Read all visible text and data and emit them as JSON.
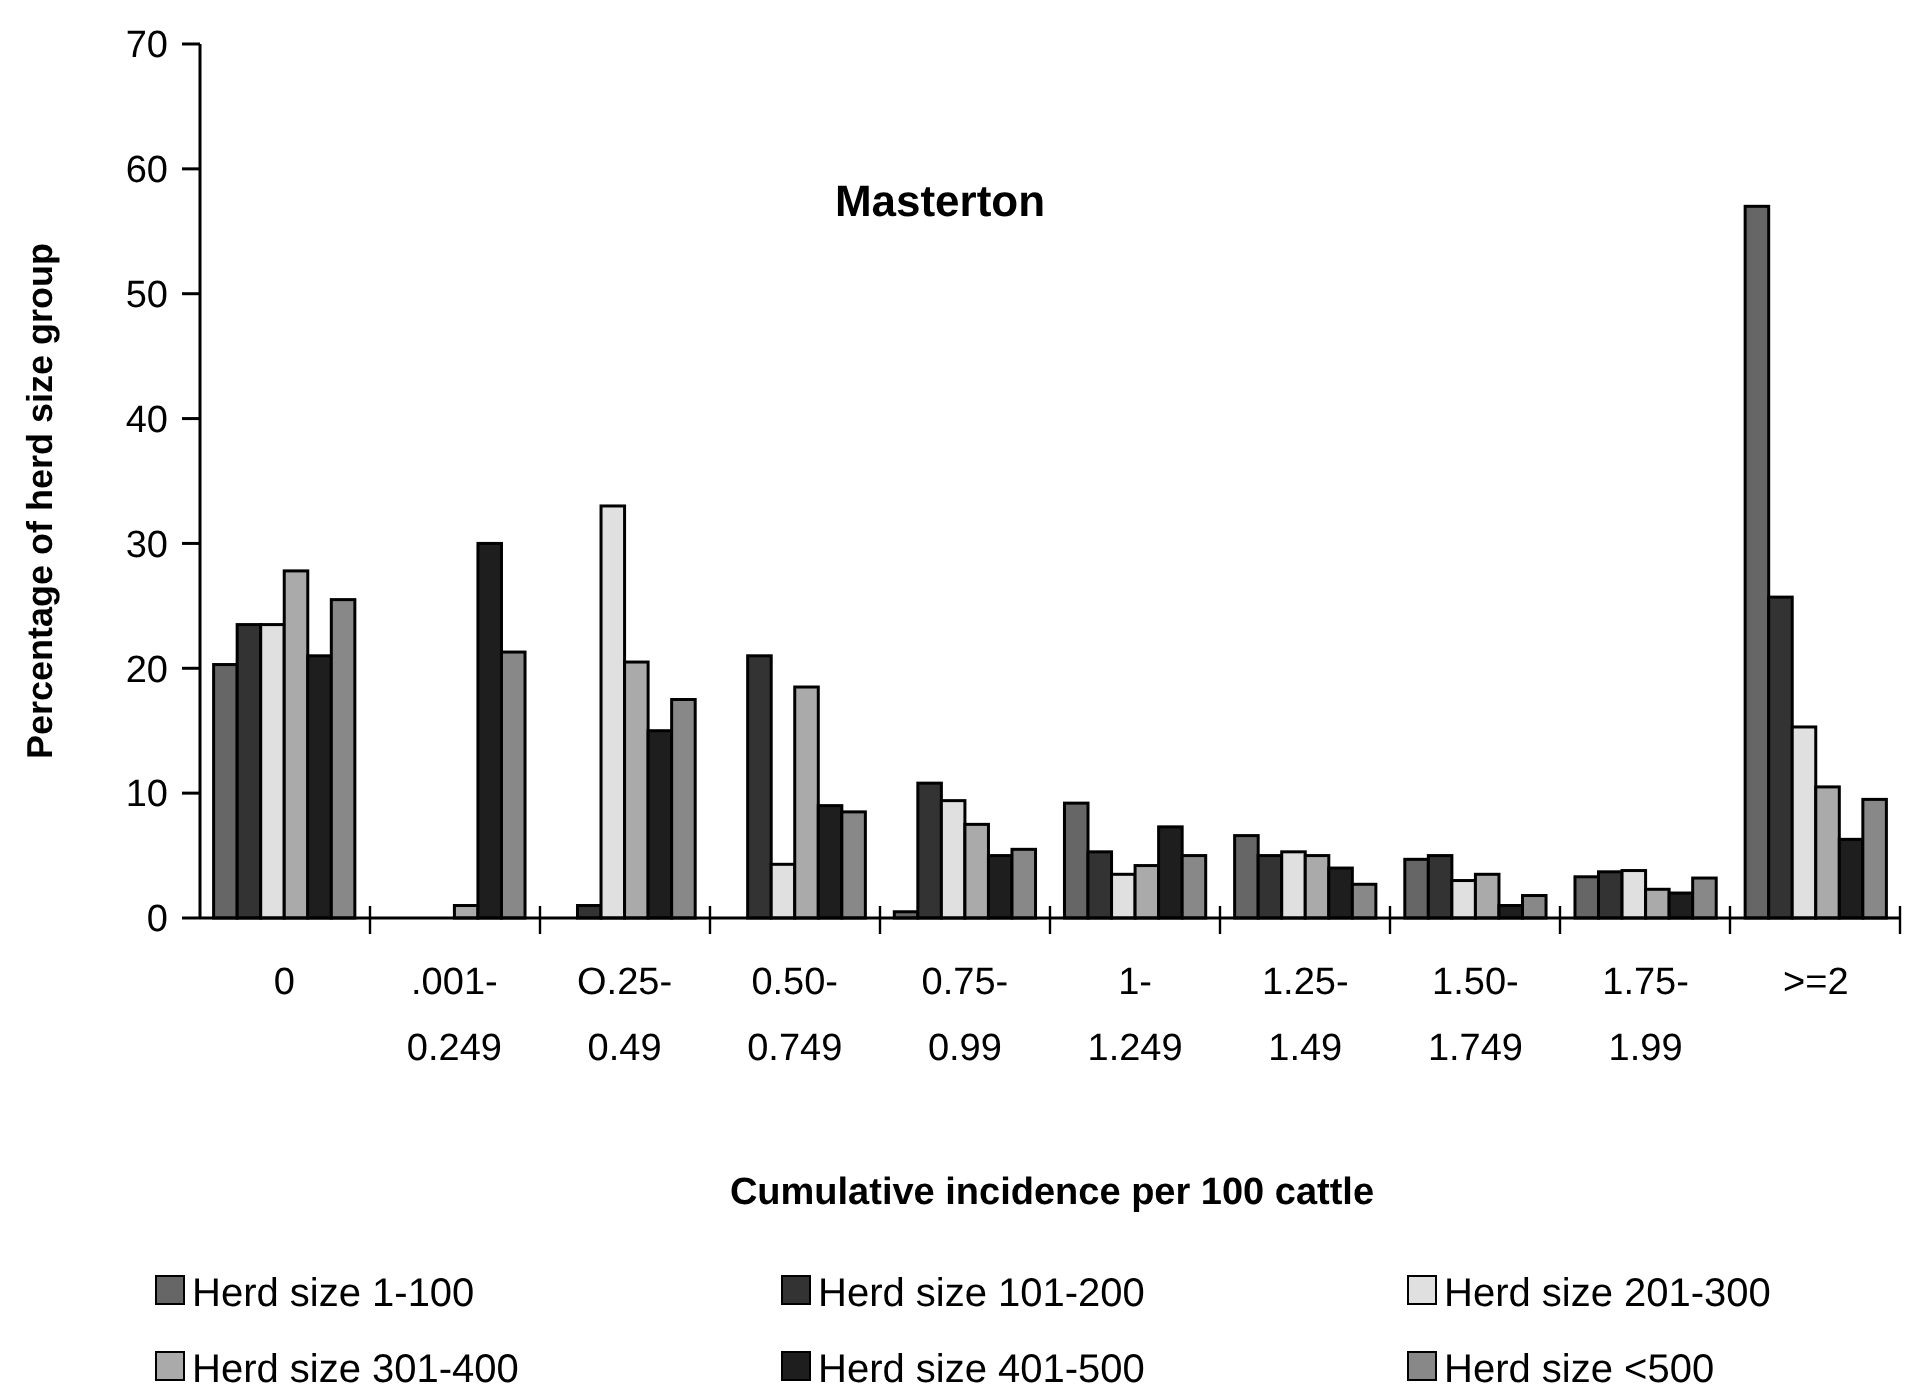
{
  "chart_data": {
    "type": "bar",
    "title": "Masterton",
    "xlabel": "Cumulative incidence per 100 cattle",
    "ylabel": "Percentage of herd size group",
    "categories": [
      "0",
      ".001- 0.249",
      "O.25- 0.49",
      "0.50- 0.749",
      "0.75- 0.99",
      "1- 1.249",
      "1.25- 1.49",
      "1.50- 1.749",
      "1.75- 1.99",
      ">=2"
    ],
    "series": [
      {
        "name": "Herd size 1-100",
        "color": "#666666",
        "values": [
          20.3,
          0,
          0,
          0,
          0.5,
          9.2,
          6.6,
          4.7,
          3.3,
          57
        ]
      },
      {
        "name": "Herd size 101-200",
        "color": "#333333",
        "values": [
          23.5,
          0,
          1,
          21,
          10.8,
          5.3,
          5,
          5,
          3.7,
          25.7
        ]
      },
      {
        "name": "Herd size 201-300",
        "color": "#e0e0e0",
        "values": [
          23.5,
          0,
          33,
          4.3,
          9.4,
          3.5,
          5.3,
          3,
          3.8,
          15.3
        ]
      },
      {
        "name": "Herd size 301-400",
        "color": "#aaaaaa",
        "values": [
          27.8,
          1,
          20.5,
          18.5,
          7.5,
          4.2,
          5,
          3.5,
          2.3,
          10.5
        ]
      },
      {
        "name": "Herd size 401-500",
        "color": "#1e1e1e",
        "values": [
          21,
          30,
          15,
          9,
          5,
          7.3,
          4,
          1,
          2,
          6.3
        ]
      },
      {
        "name": "Herd size <500",
        "color": "#888888",
        "values": [
          25.5,
          21.3,
          17.5,
          8.5,
          5.5,
          5,
          2.7,
          1.8,
          3.2,
          9.5
        ]
      }
    ],
    "ylim": [
      0,
      70
    ],
    "yticks": [
      0,
      10,
      20,
      30,
      40,
      50,
      60,
      70
    ],
    "grid": false,
    "legend": "bottom"
  }
}
